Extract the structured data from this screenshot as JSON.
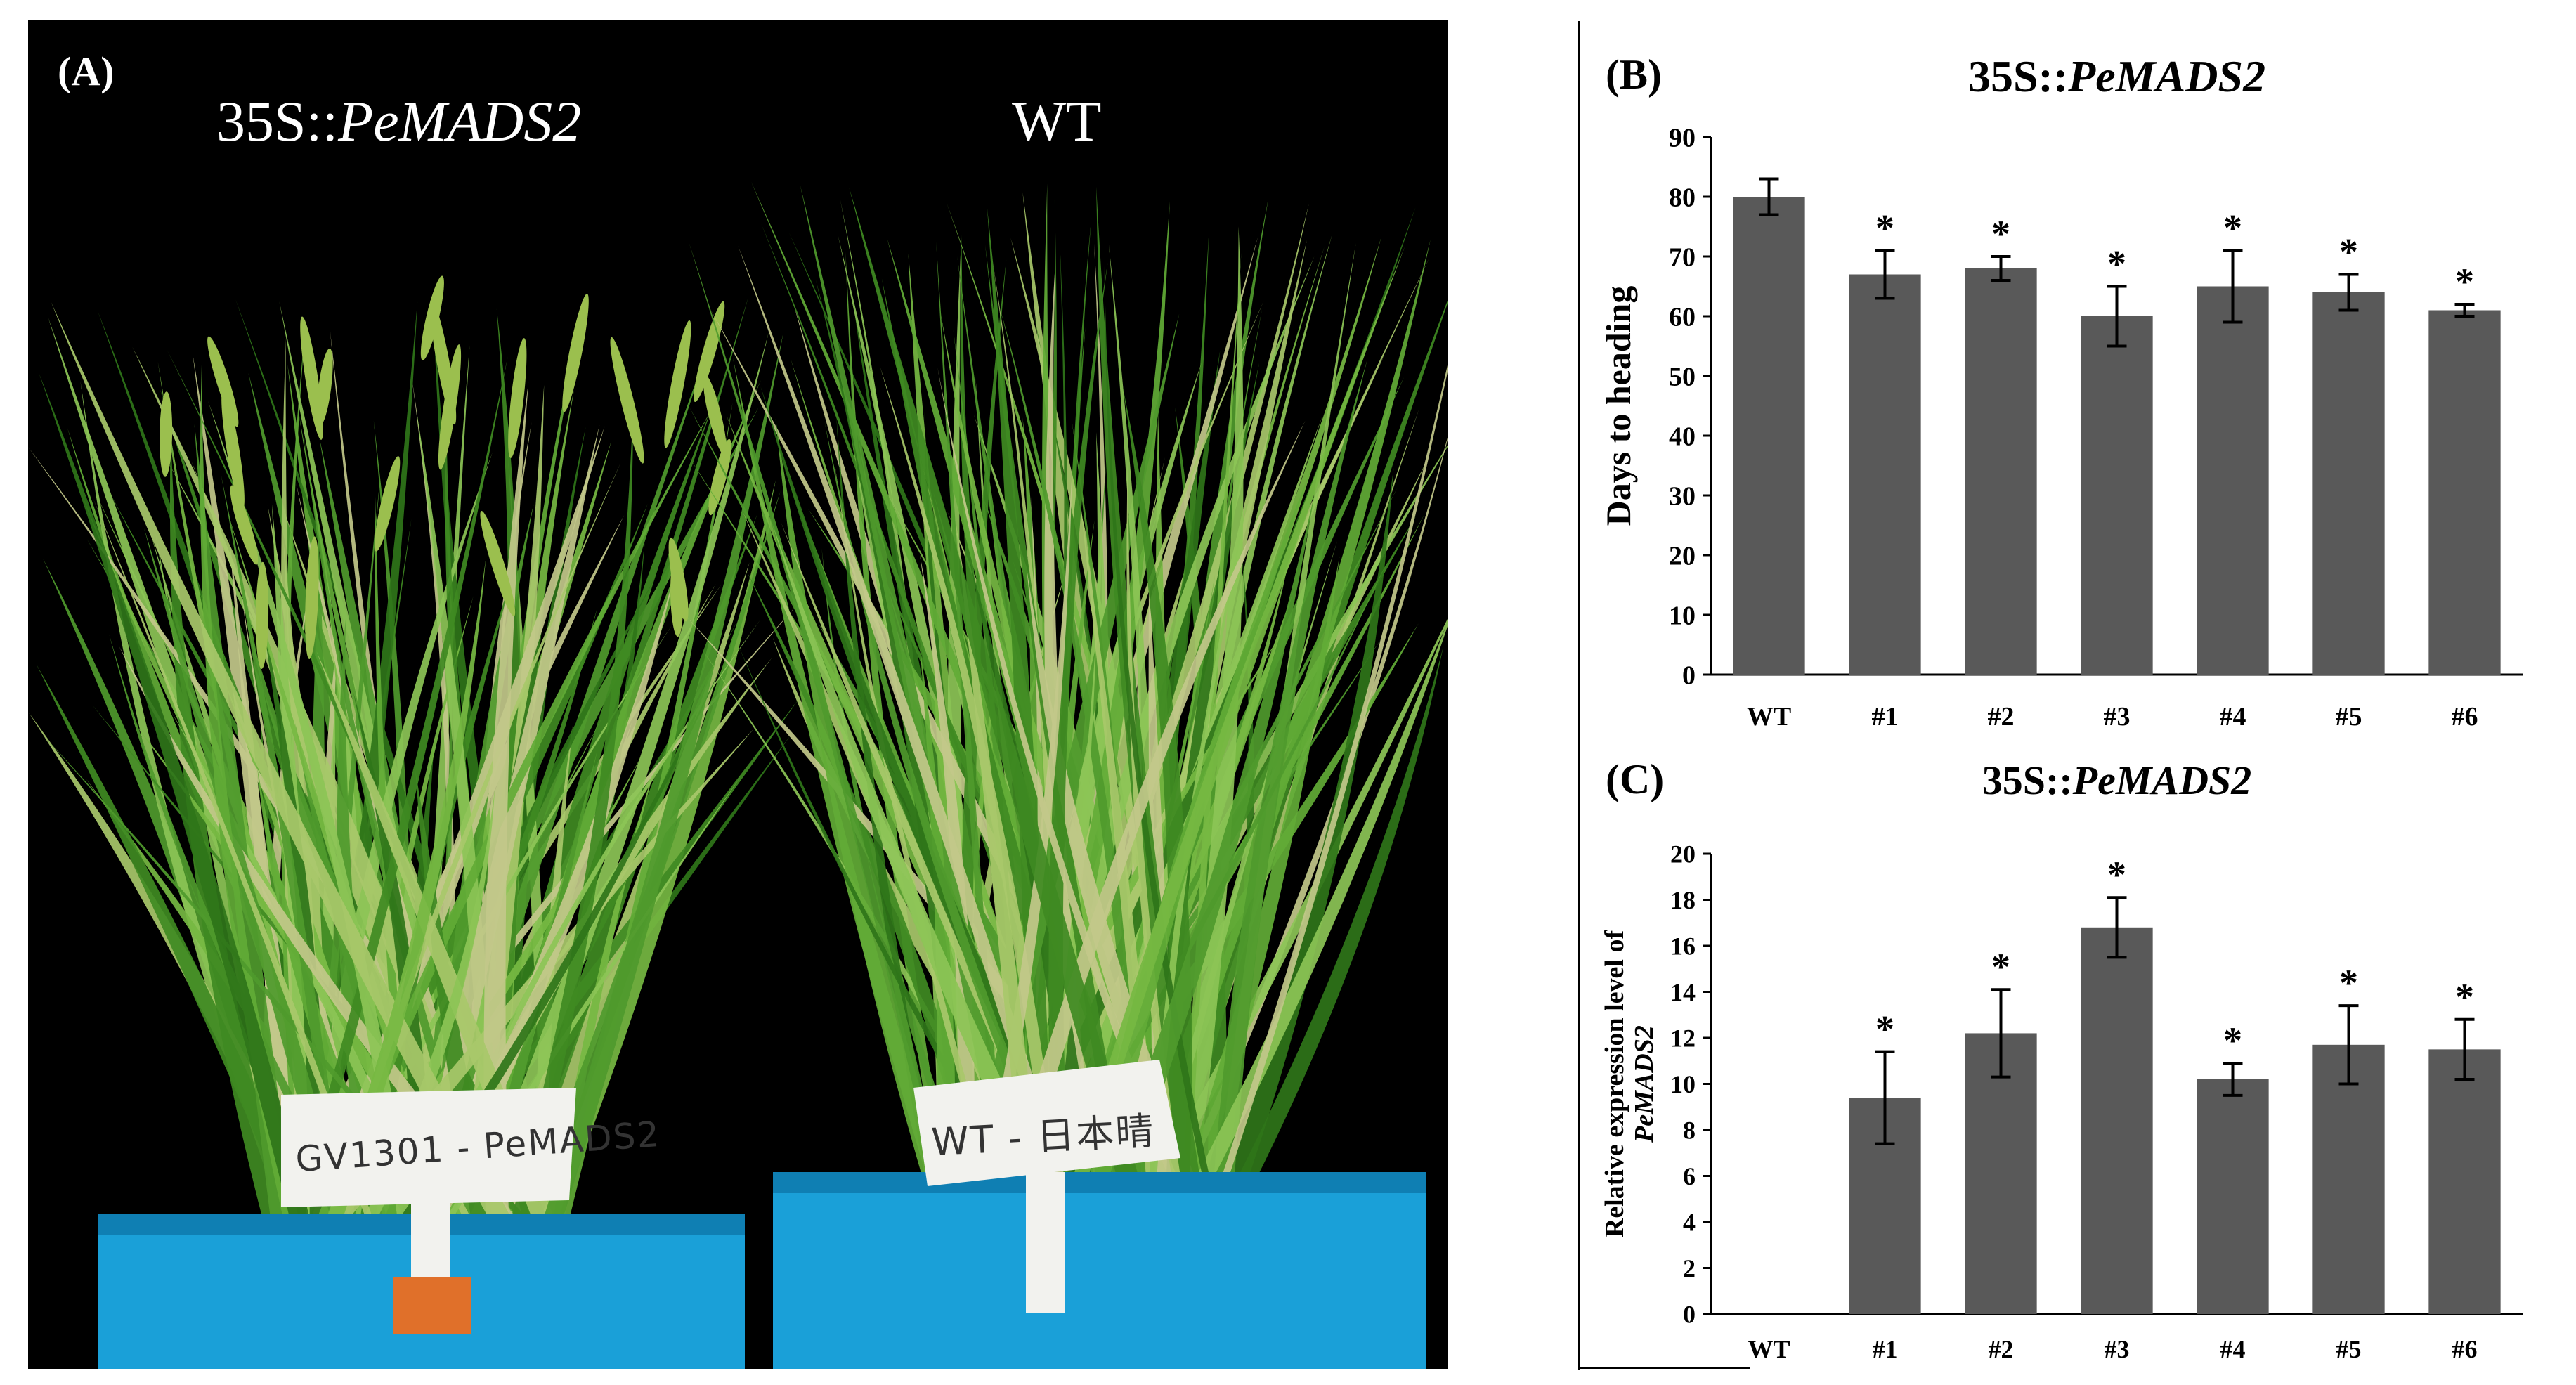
{
  "panel_a": {
    "label": "(A)",
    "transgenic_prefix": "35S::",
    "transgenic_gene": "PeMADS2",
    "wt_label": "WT",
    "tag_left": "GV1301 - PeMADS2",
    "tag_right": "WT - 日本晴",
    "colors": {
      "background": "#000000",
      "leaf": "#4f9a2c",
      "pot": "#1aa0d8",
      "tag": "#f2f2ee"
    }
  },
  "chart_data": [
    {
      "panel_label": "(B)",
      "type": "bar",
      "title_prefix": "35S::",
      "title_gene": "PeMADS2",
      "ylabel": "Days to heading",
      "xlabel": "",
      "categories": [
        "WT",
        "#1",
        "#2",
        "#3",
        "#4",
        "#5",
        "#6"
      ],
      "values": [
        80,
        67,
        68,
        60,
        65,
        64,
        61
      ],
      "errors": [
        3,
        4,
        2,
        5,
        6,
        3,
        1
      ],
      "significance": [
        "",
        "*",
        "*",
        "*",
        "*",
        "*",
        "*"
      ],
      "ylim": [
        0,
        90
      ],
      "yticks": [
        0,
        10,
        20,
        30,
        40,
        50,
        60,
        70,
        80,
        90
      ],
      "bar_color": "#595959",
      "grid": false
    },
    {
      "panel_label": "(C)",
      "type": "bar",
      "title_prefix": "35S::",
      "title_gene": "PeMADS2",
      "ylabel_line1": "Relative expression level of",
      "ylabel_line2": "PeMADS2",
      "xlabel": "",
      "categories": [
        "WT",
        "#1",
        "#2",
        "#3",
        "#4",
        "#5",
        "#6"
      ],
      "values": [
        0,
        9.4,
        12.2,
        16.8,
        10.2,
        11.7,
        11.5
      ],
      "errors": [
        0,
        2.0,
        1.9,
        1.3,
        0.7,
        1.7,
        1.3
      ],
      "significance": [
        "",
        "*",
        "*",
        "*",
        "*",
        "*",
        "*"
      ],
      "ylim": [
        0,
        20
      ],
      "yticks": [
        0,
        2,
        4,
        6,
        8,
        10,
        12,
        14,
        16,
        18,
        20
      ],
      "bar_color": "#595959",
      "grid": false
    }
  ]
}
